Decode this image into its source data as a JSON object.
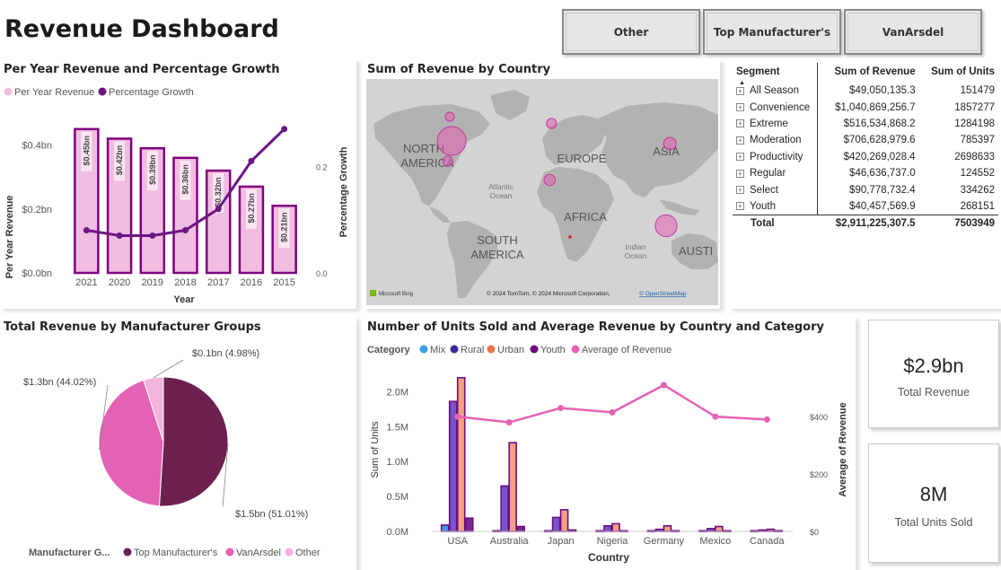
{
  "header": {
    "title": "Revenue Dashboard",
    "tabs": [
      {
        "label": "Other"
      },
      {
        "label": "Top Manufacturer's"
      },
      {
        "label": "VanArsdel"
      }
    ]
  },
  "colors": {
    "bar_fill": "#f0bde0",
    "bar_stroke": "#800080",
    "line": "#6c1584",
    "pink": "#e462b4",
    "light_pink": "#f2b3dc",
    "dark_purple": "#6d1f50",
    "mix": "#3f9ee8",
    "rural": "#3d2b9c",
    "urban": "#e8734a",
    "youth": "#6c0d80"
  },
  "chart_yearly": {
    "title": "Per Year Revenue and Percentage Growth",
    "legend": [
      "Per Year Revenue",
      "Percentage Growth"
    ],
    "ylabel_left": "Per Year Revenue",
    "ylabel_right": "Percentage Growth",
    "xlabel": "Year",
    "left_ticks": [
      "$0.0bn",
      "$0.2bn",
      "$0.4bn"
    ],
    "right_ticks": [
      "0.0",
      "0.2"
    ]
  },
  "map": {
    "title": "Sum of Revenue by Country",
    "labels": {
      "north_america": "NORTH AMERICA",
      "europe": "EUROPE",
      "asia": "ASIA",
      "atlantic": "Atlantic Ocean",
      "africa": "AFRICA",
      "south_america": "SOUTH AMERICA",
      "indian": "Indian Ocean",
      "australia": "AUSTI"
    },
    "attribution_bing": "Microsoft Bing",
    "attribution": "© 2024 TomTom, © 2024 Microsoft Corporation,",
    "attribution_link": "© OpenStreetMap"
  },
  "segment_table": {
    "headers": [
      "Segment",
      "Sum of Revenue",
      "Sum of Units"
    ],
    "rows": [
      {
        "segment": "All Season",
        "revenue": "$49,050,135.3",
        "units": "151479"
      },
      {
        "segment": "Convenience",
        "revenue": "$1,040,869,256.7",
        "units": "1857277"
      },
      {
        "segment": "Extreme",
        "revenue": "$516,534,868.2",
        "units": "1284198"
      },
      {
        "segment": "Moderation",
        "revenue": "$706,628,979.6",
        "units": "785397"
      },
      {
        "segment": "Productivity",
        "revenue": "$420,269,028.4",
        "units": "2698633"
      },
      {
        "segment": "Regular",
        "revenue": "$46,636,737.0",
        "units": "124552"
      },
      {
        "segment": "Select",
        "revenue": "$90,778,732.4",
        "units": "334262"
      },
      {
        "segment": "Youth",
        "revenue": "$40,457,569.9",
        "units": "268151"
      }
    ],
    "total": {
      "segment": "Total",
      "revenue": "$2,911,225,307.5",
      "units": "7503949"
    }
  },
  "pie": {
    "title": "Total Revenue by Manufacturer Groups",
    "legend_title": "Manufacturer G...",
    "legend": [
      "Top Manufacturer's",
      "VanArsdel",
      "Other"
    ]
  },
  "units_chart": {
    "title": "Number of Units Sold and Average Revenue by Country and Category",
    "legend_title": "Category",
    "legend": [
      "Mix",
      "Rural",
      "Urban",
      "Youth",
      "Average of Revenue"
    ],
    "ylabel_left": "Sum of Units",
    "ylabel_right": "Average of Revenue",
    "xlabel": "Country",
    "left_ticks": [
      "0.0M",
      "0.5M",
      "1.0M",
      "1.5M",
      "2.0M"
    ],
    "right_ticks": [
      "$0",
      "$200",
      "$400"
    ]
  },
  "kpis": [
    {
      "value": "$2.9bn",
      "label": "Total Revenue"
    },
    {
      "value": "8M",
      "label": "Total Units Sold"
    }
  ],
  "chart_data": [
    {
      "type": "bar",
      "title": "Per Year Revenue and Percentage Growth",
      "categories": [
        "2021",
        "2020",
        "2019",
        "2018",
        "2017",
        "2016",
        "2015"
      ],
      "series": [
        {
          "name": "Per Year Revenue",
          "values": [
            0.45,
            0.42,
            0.39,
            0.36,
            0.32,
            0.27,
            0.21
          ],
          "labels": [
            "$0.45bn",
            "$0.42bn",
            "$0.39bn",
            "$0.36bn",
            "$0.32bn",
            "$0.27bn",
            "$0.21bn"
          ],
          "axis": "left"
        },
        {
          "name": "Percentage Growth",
          "type": "line",
          "values": [
            0.08,
            0.07,
            0.07,
            0.08,
            0.12,
            0.21,
            0.27
          ],
          "axis": "right"
        }
      ],
      "xlabel": "Year",
      "ylabel": "Per Year Revenue",
      "ylim": [
        0,
        0.5
      ],
      "y2lim": [
        0,
        0.3
      ]
    },
    {
      "type": "pie",
      "title": "Total Revenue by Manufacturer Groups",
      "slices": [
        {
          "name": "Top Manufacturer's",
          "value": 51.01,
          "label": "$1.5bn (51.01%)",
          "color": "#6d1f50"
        },
        {
          "name": "VanArsdel",
          "value": 44.02,
          "label": "$1.3bn (44.02%)",
          "color": "#e462b4"
        },
        {
          "name": "Other",
          "value": 4.98,
          "label": "$0.1bn (4.98%)",
          "color": "#f2b3dc"
        }
      ]
    },
    {
      "type": "bar",
      "title": "Number of Units Sold and Average Revenue by Country and Category",
      "categories": [
        "USA",
        "Australia",
        "Japan",
        "Nigeria",
        "Germany",
        "Mexico",
        "Canada"
      ],
      "series": [
        {
          "name": "Mix",
          "values": [
            0.09,
            0.01,
            0.01,
            0.01,
            0.01,
            0.01,
            0.01
          ],
          "axis": "left"
        },
        {
          "name": "Rural",
          "values": [
            1.86,
            0.65,
            0.2,
            0.08,
            0.03,
            0.04,
            0.02
          ],
          "axis": "left"
        },
        {
          "name": "Urban",
          "values": [
            2.2,
            1.27,
            0.31,
            0.11,
            0.08,
            0.07,
            0.03
          ],
          "axis": "left"
        },
        {
          "name": "Youth",
          "values": [
            0.19,
            0.07,
            0.02,
            0.01,
            0.01,
            0.01,
            0.01
          ],
          "axis": "left"
        },
        {
          "name": "Average of Revenue",
          "type": "line",
          "values": [
            400,
            380,
            430,
            415,
            510,
            400,
            390
          ],
          "axis": "right"
        }
      ],
      "xlabel": "Country",
      "ylabel": "Sum of Units",
      "ylim": [
        0,
        2.3
      ],
      "y2lim": [
        0,
        560
      ]
    },
    {
      "type": "scatter",
      "title": "Sum of Revenue by Country",
      "points": [
        {
          "name": "USA",
          "lon": -98,
          "lat": 38,
          "size": 1.0
        },
        {
          "name": "Mexico",
          "lon": -102,
          "lat": 23,
          "size": 0.2
        },
        {
          "name": "Canada",
          "lon": -100,
          "lat": 56,
          "size": 0.15
        },
        {
          "name": "Germany",
          "lon": 10,
          "lat": 51,
          "size": 0.2
        },
        {
          "name": "Nigeria",
          "lon": 8,
          "lat": 9,
          "size": 0.25
        },
        {
          "name": "Japan",
          "lon": 138,
          "lat": 36,
          "size": 0.3
        },
        {
          "name": "Australia",
          "lon": 134,
          "lat": -25,
          "size": 0.7
        }
      ]
    }
  ]
}
